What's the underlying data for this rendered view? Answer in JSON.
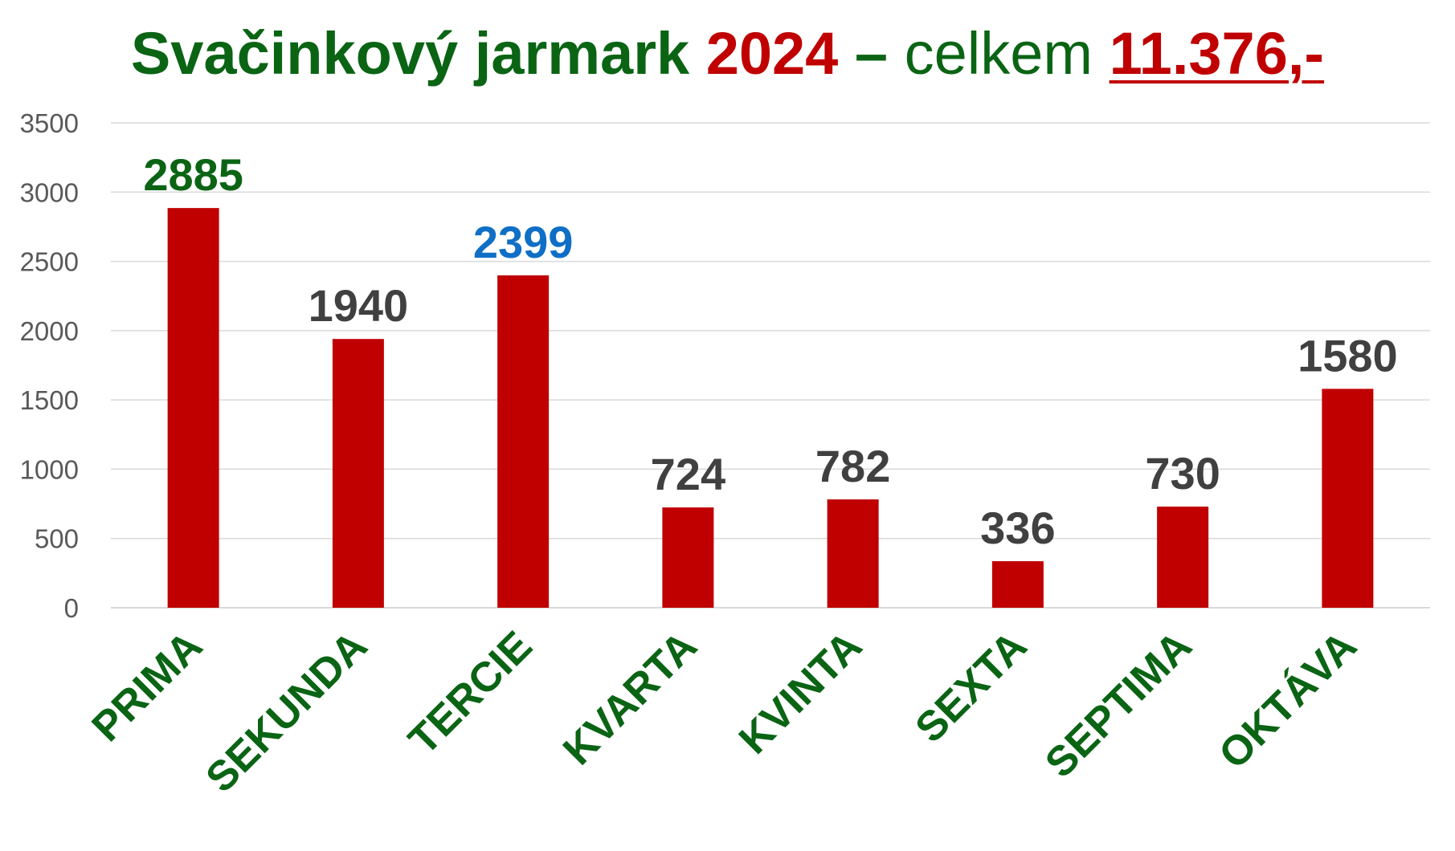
{
  "title": {
    "part1": "Svačinkový jarmark",
    "year": "2024",
    "dash": "–",
    "part2": "celkem",
    "total": "11.376,-"
  },
  "colors": {
    "bar": "#c00000",
    "title_green": "#0a6414",
    "title_red": "#c00000",
    "label_default": "#404040",
    "label_green": "#0a6414",
    "label_blue": "#0f6fc6",
    "category_green": "#0a6414",
    "grid": "#d9d9d9",
    "axis_text": "#595959"
  },
  "chart_data": {
    "type": "bar",
    "title": "Svačinkový jarmark 2024 – celkem 11.376,-",
    "xlabel": "",
    "ylabel": "",
    "categories": [
      "PRIMA",
      "SEKUNDA",
      "TERCIE",
      "KVARTA",
      "KVINTA",
      "SEXTA",
      "SEPTIMA",
      "OKTÁVA"
    ],
    "values": [
      2885,
      1940,
      2399,
      724,
      782,
      336,
      730,
      1580
    ],
    "data_labels": [
      "2885",
      "1940",
      "2399",
      "724",
      "782",
      "336",
      "730",
      "1580"
    ],
    "label_colors": [
      "#0a6414",
      "#404040",
      "#0f6fc6",
      "#404040",
      "#404040",
      "#404040",
      "#404040",
      "#404040"
    ],
    "ylim": [
      0,
      3500
    ],
    "yticks": [
      0,
      500,
      1000,
      1500,
      2000,
      2500,
      3000,
      3500
    ],
    "grid": true,
    "legend": "none"
  }
}
